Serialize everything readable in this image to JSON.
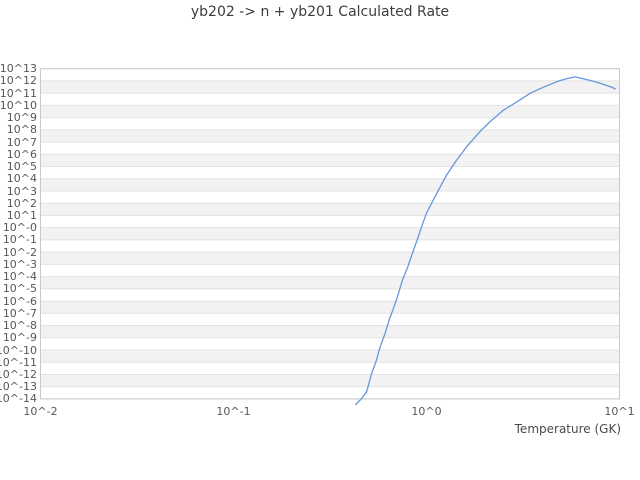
{
  "title": "yb202 -> n + yb201 Calculated Rate",
  "chart_data": {
    "type": "line",
    "title": "yb202 -> n + yb201 Calculated Rate",
    "xlabel": "Temperature (GK)",
    "ylabel": "",
    "x_scale": "log",
    "y_scale": "log",
    "xlim_log10": [
      -2,
      1
    ],
    "ylim_log10": [
      -14,
      13
    ],
    "x_tick_labels": [
      "10^-2",
      "10^-1",
      "10^0",
      "10^1"
    ],
    "y_tick_labels": [
      "10^13",
      "10^12",
      "10^11",
      "10^10",
      "10^9",
      "10^8",
      "10^7",
      "10^6",
      "10^5",
      "10^4",
      "10^3",
      "10^2",
      "10^1",
      "10^-0",
      "10^-1",
      "10^-2",
      "10^-3",
      "10^-4",
      "10^-5",
      "10^-6",
      "10^-7",
      "10^-8",
      "10^-9",
      "10^-10",
      "10^-11",
      "10^-12",
      "10^-13",
      "10^-14"
    ],
    "grid": "horizontal",
    "legend": "none",
    "plot_band_colors": {
      "even_exponent_band": "#f2f2f2",
      "odd_exponent_band": "#ffffff"
    },
    "gridline_color": "#e3e3e3",
    "frame_color": "#c9c9c9",
    "series": [
      {
        "name": "calculated rate",
        "color": "#6497db",
        "points_T_log10rate": [
          [
            0.43,
            -14.45
          ],
          [
            0.46,
            -14.0
          ],
          [
            0.49,
            -13.4
          ],
          [
            0.52,
            -11.9
          ],
          [
            0.55,
            -10.85
          ],
          [
            0.575,
            -9.75
          ],
          [
            0.61,
            -8.65
          ],
          [
            0.64,
            -7.55
          ],
          [
            0.68,
            -6.45
          ],
          [
            0.715,
            -5.4
          ],
          [
            0.75,
            -4.3
          ],
          [
            0.8,
            -3.2
          ],
          [
            0.845,
            -2.1
          ],
          [
            0.895,
            -1.0
          ],
          [
            0.945,
            0.1
          ],
          [
            1.0,
            1.2
          ],
          [
            1.13,
            2.8
          ],
          [
            1.27,
            4.3
          ],
          [
            1.43,
            5.5
          ],
          [
            1.61,
            6.6
          ],
          [
            1.89,
            7.85
          ],
          [
            2.13,
            8.65
          ],
          [
            2.5,
            9.6
          ],
          [
            2.95,
            10.3
          ],
          [
            3.45,
            11.0
          ],
          [
            4.05,
            11.5
          ],
          [
            4.75,
            11.95
          ],
          [
            5.3,
            12.18
          ],
          [
            5.9,
            12.33
          ],
          [
            6.6,
            12.15
          ],
          [
            7.2,
            12.0
          ],
          [
            7.8,
            11.85
          ],
          [
            8.5,
            11.65
          ],
          [
            9.15,
            11.48
          ],
          [
            9.5,
            11.35
          ]
        ]
      }
    ]
  }
}
